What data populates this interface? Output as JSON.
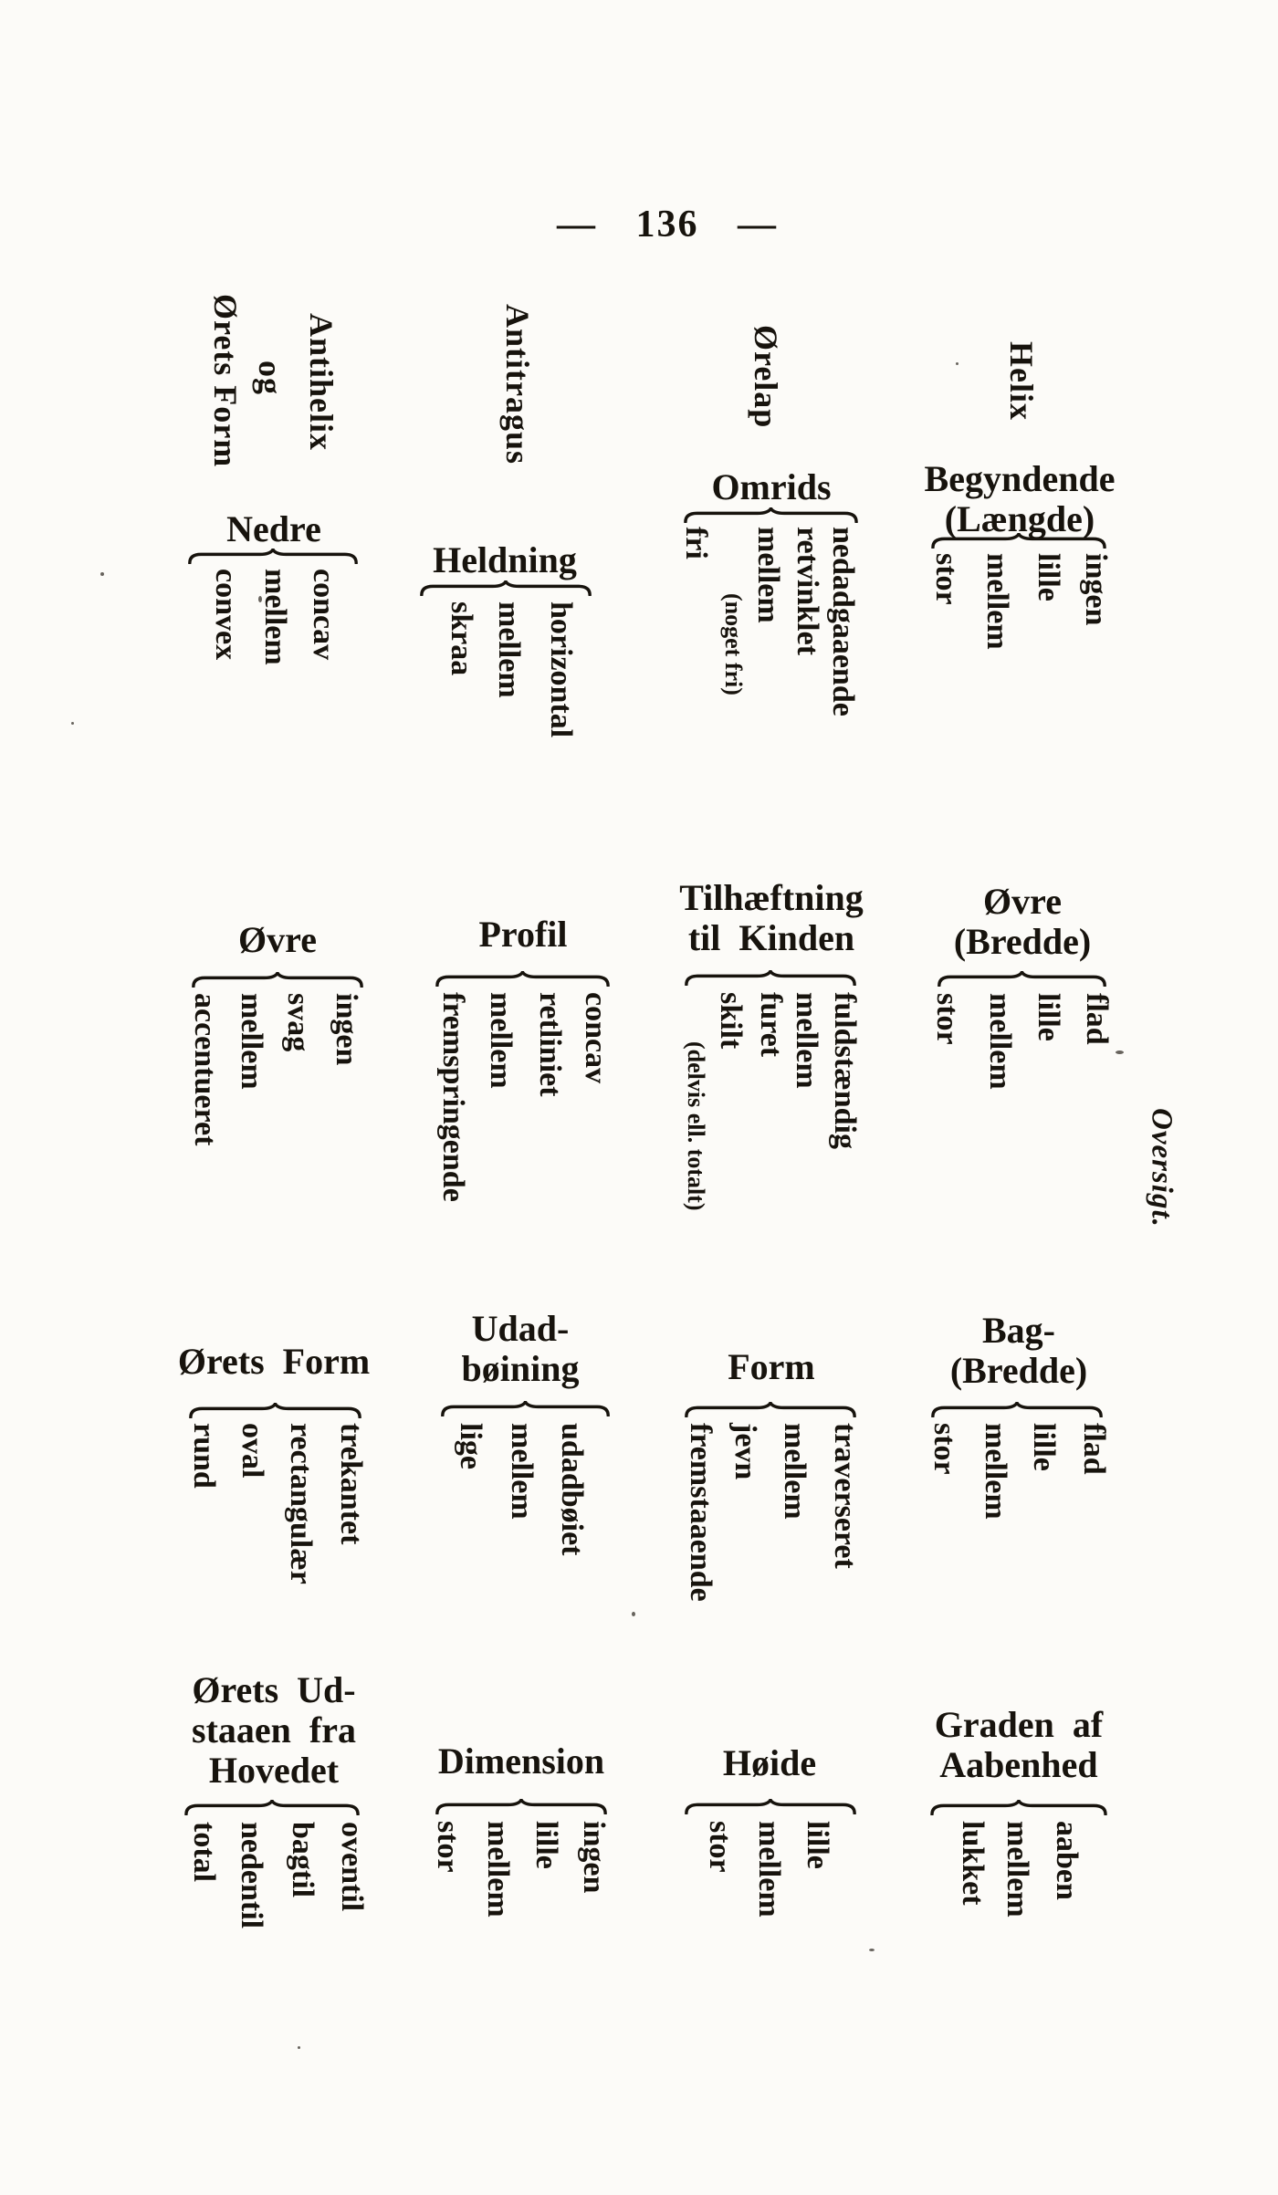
{
  "page": {
    "header": "— 136 —",
    "side_caption": "Oversigt."
  },
  "rows": [
    {
      "category": {
        "label": "Helix"
      },
      "characteristics": [
        {
          "title_lines": [
            "Begyndende",
            "(Længde)"
          ],
          "options": [
            {
              "text": "ingen"
            },
            {
              "text": "lille"
            },
            {
              "text": "mellem"
            },
            {
              "text": "stor"
            }
          ]
        },
        {
          "title_lines": [
            "Øvre",
            "(Bredde)"
          ],
          "options": [
            {
              "text": "flad"
            },
            {
              "text": "lille"
            },
            {
              "text": "mellem"
            },
            {
              "text": "stor"
            }
          ]
        },
        {
          "title_lines": [
            "Bag-",
            "(Bredde)"
          ],
          "options": [
            {
              "text": "flad"
            },
            {
              "text": "lille"
            },
            {
              "text": "mellem"
            },
            {
              "text": "stor"
            }
          ]
        },
        {
          "title_lines": [
            "Graden af",
            "Aabenhed"
          ],
          "options": [
            {
              "text": "aaben"
            },
            {
              "text": "mellem"
            },
            {
              "text": "lukket"
            }
          ]
        }
      ]
    },
    {
      "category": {
        "label": "Ørelap"
      },
      "characteristics": [
        {
          "title_lines": [
            "Omrids"
          ],
          "options": [
            {
              "text": "nedadgaaende"
            },
            {
              "text": "retvinklet"
            },
            {
              "text": "mellem"
            },
            {
              "text": "(noget fri)",
              "note": true
            },
            {
              "text": "fri"
            }
          ]
        },
        {
          "title_lines": [
            "Tilhæftning",
            "til Kinden"
          ],
          "options": [
            {
              "text": "fuldstændig"
            },
            {
              "text": "mellem"
            },
            {
              "text": "furet"
            },
            {
              "text": "skilt"
            },
            {
              "text": "(delvis ell. totalt)",
              "note": true
            }
          ]
        },
        {
          "title_lines": [
            "Form"
          ],
          "options": [
            {
              "text": "traverseret"
            },
            {
              "text": "mellem"
            },
            {
              "text": "jevn"
            },
            {
              "text": "fremstaaende"
            }
          ]
        },
        {
          "title_lines": [
            "Høide"
          ],
          "options": [
            {
              "text": "lille"
            },
            {
              "text": "mellem"
            },
            {
              "text": "stor"
            }
          ]
        }
      ]
    },
    {
      "category": {
        "label": "Antitragus"
      },
      "characteristics": [
        {
          "title_lines": [
            "Heldning"
          ],
          "options": [
            {
              "text": "horizontal"
            },
            {
              "text": "mellem"
            },
            {
              "text": "skraa"
            }
          ]
        },
        {
          "title_lines": [
            "Profil"
          ],
          "options": [
            {
              "text": "concav"
            },
            {
              "text": "retliniet"
            },
            {
              "text": "mellem"
            },
            {
              "text": "fremspringende"
            }
          ]
        },
        {
          "title_lines": [
            "Udad-",
            "bøining"
          ],
          "options": [
            {
              "text": "udadbøiet"
            },
            {
              "text": "mellem"
            },
            {
              "text": "lige"
            }
          ]
        },
        {
          "title_lines": [
            "Dimension"
          ],
          "options": [
            {
              "text": "ingen"
            },
            {
              "text": "lille"
            },
            {
              "text": "mellem"
            },
            {
              "text": "stor"
            }
          ]
        }
      ]
    },
    {
      "category": {
        "label_lines": [
          "Antihelix",
          "og",
          "Ørets Form"
        ]
      },
      "characteristics": [
        {
          "title_lines": [
            "Nedre"
          ],
          "options": [
            {
              "text": "concav"
            },
            {
              "text": "mellem"
            },
            {
              "text": "convex"
            }
          ]
        },
        {
          "title_lines": [
            "Øvre"
          ],
          "options": [
            {
              "text": "ingen"
            },
            {
              "text": "svag"
            },
            {
              "text": "mellem"
            },
            {
              "text": "accentueret"
            }
          ]
        },
        {
          "title_lines": [
            "Ørets Form"
          ],
          "options": [
            {
              "text": "trekantet"
            },
            {
              "text": "rectangulær"
            },
            {
              "text": "oval"
            },
            {
              "text": "rund"
            }
          ]
        },
        {
          "title_lines": [
            "Ørets Ud-",
            "staaen fra",
            "Hovedet"
          ],
          "options": [
            {
              "text": "oventil"
            },
            {
              "text": "bagtil"
            },
            {
              "text": "nedentil"
            },
            {
              "text": "total"
            }
          ]
        }
      ]
    }
  ]
}
